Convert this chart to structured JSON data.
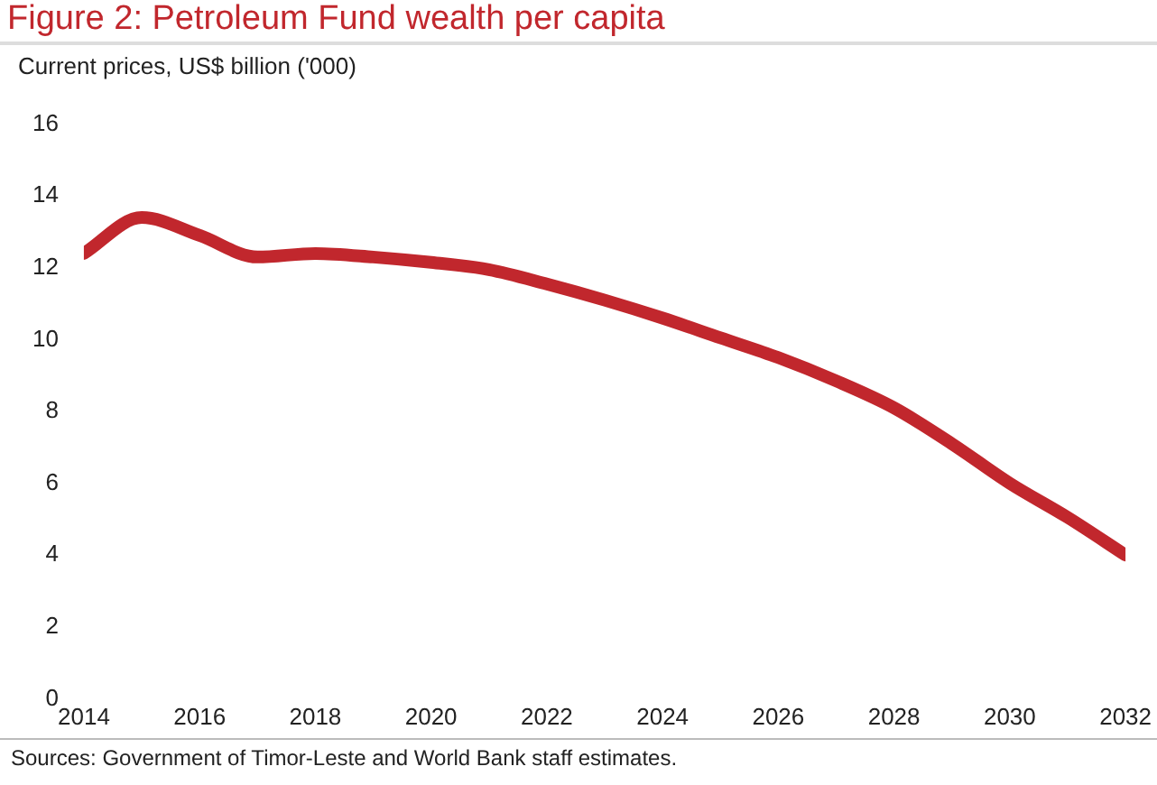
{
  "chart_data": {
    "type": "line",
    "title": "Figure 2: Petroleum Fund wealth per capita",
    "ylabel": "Current prices, US$ billion ('000)",
    "x": [
      2014,
      2015,
      2016,
      2017,
      2018,
      2019,
      2020,
      2021,
      2022,
      2023,
      2024,
      2025,
      2026,
      2027,
      2028,
      2029,
      2030,
      2031,
      2032
    ],
    "series": [
      {
        "color": "#c1272d",
        "values": [
          12.4,
          13.4,
          12.9,
          12.3,
          12.4,
          12.3,
          12.15,
          11.95,
          11.55,
          11.1,
          10.6,
          10.05,
          9.5,
          8.85,
          8.1,
          7.1,
          6.0,
          5.05,
          4.0
        ]
      }
    ],
    "xlim": [
      2014,
      2032
    ],
    "xticks": [
      2014,
      2016,
      2018,
      2020,
      2022,
      2024,
      2026,
      2028,
      2030,
      2032
    ],
    "ylim": [
      0,
      16
    ],
    "yticks": [
      0,
      2,
      4,
      6,
      8,
      10,
      12,
      14,
      16
    ],
    "grid": false,
    "legend": false,
    "marker": "none",
    "line_style": "solid",
    "annotations": [
      "Sources: Government of Timor-Leste and World Bank staff estimates."
    ]
  }
}
